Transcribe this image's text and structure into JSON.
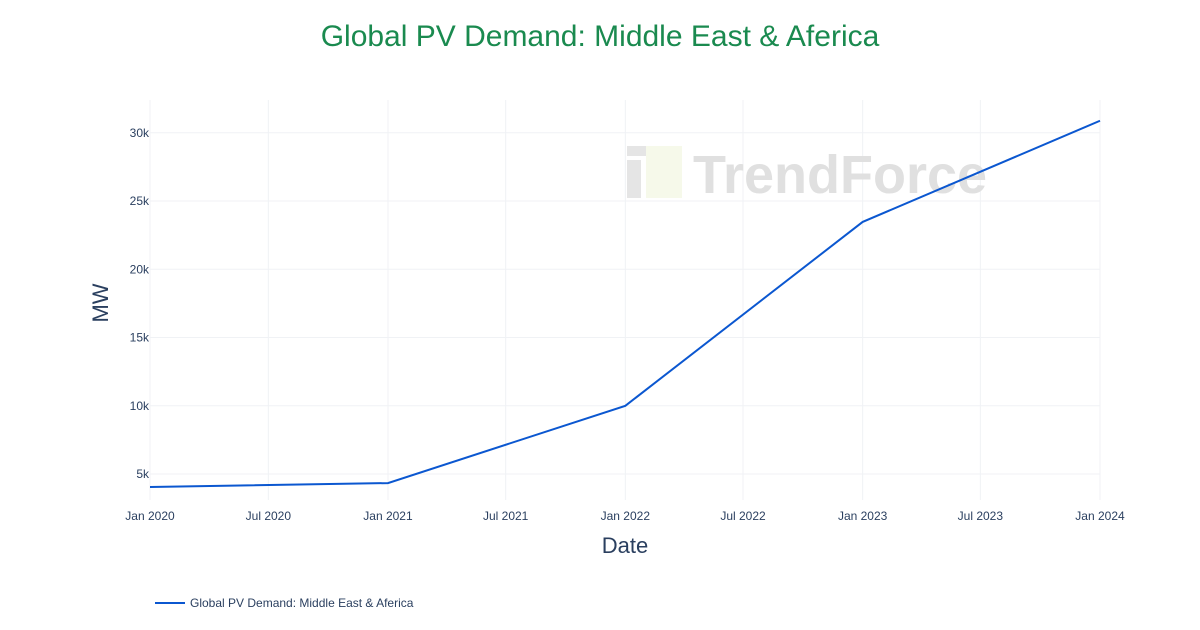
{
  "chart_data": {
    "type": "line",
    "title": "Global PV Demand: Middle East & Aferica",
    "xlabel": "Date",
    "ylabel": "MW",
    "x": [
      "2020-01-01",
      "2021-01-01",
      "2022-01-01",
      "2023-01-01",
      "2024-01-01"
    ],
    "series": [
      {
        "name": "Global PV Demand: Middle East & Aferica",
        "values": [
          4050,
          4340,
          10000,
          23470,
          30880
        ],
        "color": "#0b57d0"
      }
    ],
    "xticks": [
      "Jan 2020",
      "Jul 2020",
      "Jan 2021",
      "Jul 2021",
      "Jan 2022",
      "Jul 2022",
      "Jan 2023",
      "Jul 2023",
      "Jan 2024"
    ],
    "xtick_dates": [
      "2020-01-01",
      "2020-07-01",
      "2021-01-01",
      "2021-07-01",
      "2022-01-01",
      "2022-07-01",
      "2023-01-01",
      "2023-07-01",
      "2024-01-01"
    ],
    "yticks": [
      5000,
      10000,
      15000,
      20000,
      25000,
      30000
    ],
    "ytick_labels": [
      "5k",
      "10k",
      "15k",
      "20k",
      "25k",
      "30k"
    ],
    "xlim": [
      "2020-01-01",
      "2024-01-01"
    ],
    "ylim": [
      3100,
      32400
    ],
    "grid": true,
    "legend_placement": "bottom-left",
    "watermark": "TrendForce",
    "title_color": "#1a8a4f"
  }
}
